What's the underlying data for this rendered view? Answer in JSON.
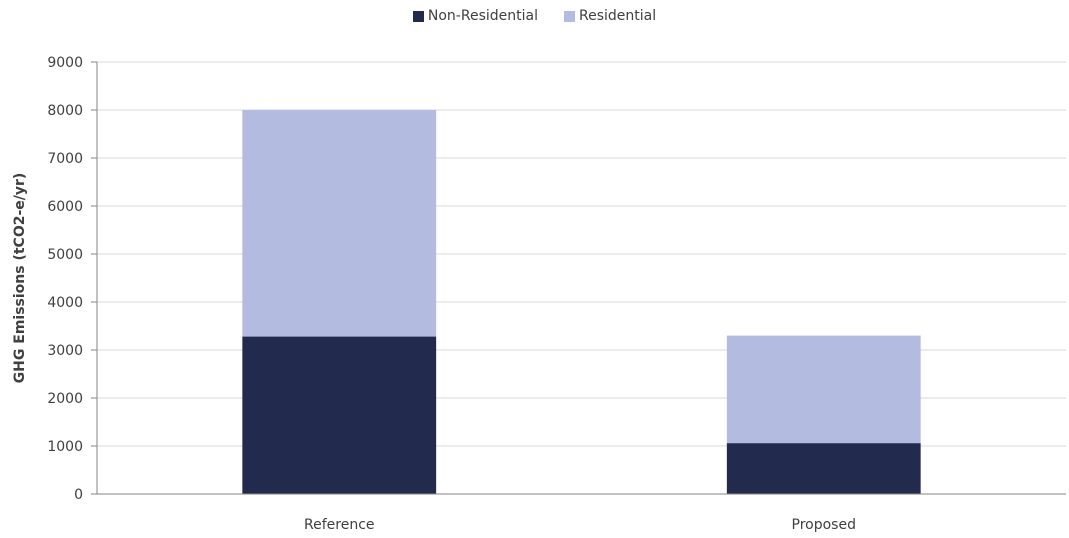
{
  "chart_data": {
    "type": "bar",
    "stacked": true,
    "categories": [
      "Reference",
      "Proposed"
    ],
    "series": [
      {
        "name": "Non-Residential",
        "values": [
          3280,
          1060
        ],
        "color": "#222a4e"
      },
      {
        "name": "Residential",
        "values": [
          4720,
          2240
        ],
        "color": "#b3bbe0"
      }
    ],
    "title": "",
    "xlabel": "",
    "ylabel": "GHG Emissions  (tCO2-e/yr)",
    "ylim": [
      0,
      9000
    ],
    "yticks": [
      "0",
      "1000",
      "2000",
      "3000",
      "4000",
      "5000",
      "6000",
      "7000",
      "8000",
      "9000"
    ],
    "grid": true,
    "legend_position": "top-center"
  }
}
